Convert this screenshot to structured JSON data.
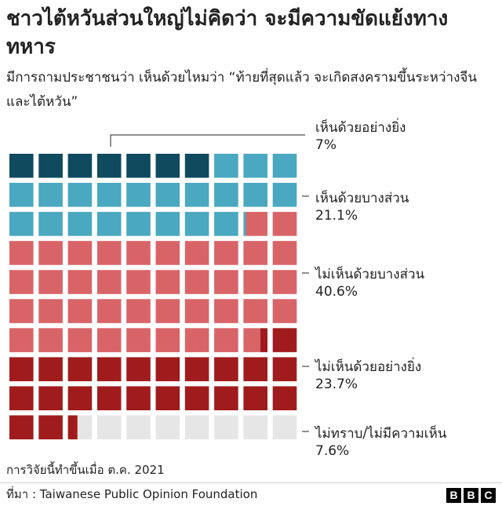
{
  "title": "ชาวไต้หวันส่วนใหญ่ไม่คิดว่า จะมีความขัดแย้งทางทหาร",
  "subtitle": "มีการถามประชาชนว่า เห็นด้วยไหมว่า “ท้ายที่สุดแล้ว จะเกิดสงครามขึ้นระหว่างจีนและไต้หวัน”",
  "chart_data": {
    "type": "waffle",
    "grid": {
      "rows": 10,
      "cols": 10,
      "total": 100
    },
    "series": [
      {
        "name": "เห็นด้วยอย่างยิ่ง",
        "value": 7,
        "label": "7%",
        "color": "#0f4a5f"
      },
      {
        "name": "เห็นด้วยบางส่วน",
        "value": 21.1,
        "label": "21.1%",
        "color": "#4aa8c0"
      },
      {
        "name": "ไม่เห็นด้วยบางส่วน",
        "value": 40.6,
        "label": "40.6%",
        "color": "#d96468"
      },
      {
        "name": "ไม่เห็นด้วยอย่างยิ่ง",
        "value": 23.7,
        "label": "23.7%",
        "color": "#a01c1c"
      },
      {
        "name": "ไม่ทราบ/ไม่มีความเห็น",
        "value": 7.6,
        "label": "7.6%",
        "color": "#e6e6e6"
      }
    ]
  },
  "note": "การวิจัยนี้ทำขึ้นเมื่อ ต.ค. 2021",
  "source": "ที่มา : Taiwanese Public Opinion Foundation",
  "brand": [
    "B",
    "B",
    "C"
  ]
}
